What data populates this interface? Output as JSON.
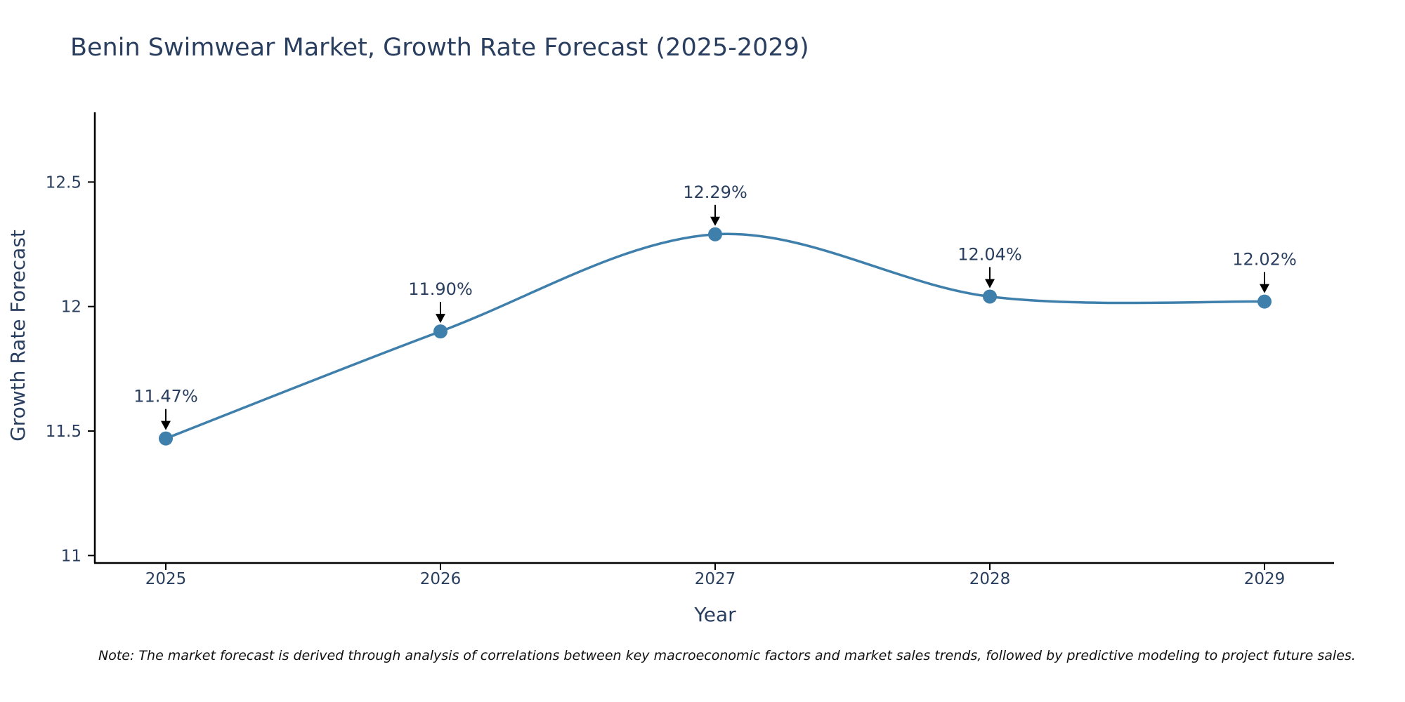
{
  "chart_data": {
    "type": "line",
    "title": "Benin Swimwear Market, Growth Rate Forecast (2025-2029)",
    "xlabel": "Year",
    "ylabel": "Growth Rate Forecast",
    "categories": [
      "2025",
      "2026",
      "2027",
      "2028",
      "2029"
    ],
    "series": [
      {
        "name": "Growth Rate Forecast",
        "values": [
          11.47,
          11.9,
          12.29,
          12.04,
          12.02
        ]
      }
    ],
    "data_labels": [
      "11.47%",
      "11.90%",
      "12.29%",
      "12.04%",
      "12.02%"
    ],
    "y_ticks": [
      11,
      11.5,
      12,
      12.5
    ],
    "y_tick_labels": [
      "11",
      "11.5",
      "12",
      "12.5"
    ],
    "ylim": [
      10.97,
      12.78
    ],
    "grid": false,
    "line_shape": "spline",
    "line_color": "#3f7fab",
    "annotation_color": "#000000",
    "note": "Note: The market forecast is derived through analysis of correlations between key macroeconomic factors and market sales trends, followed by predictive modeling to project future sales."
  }
}
